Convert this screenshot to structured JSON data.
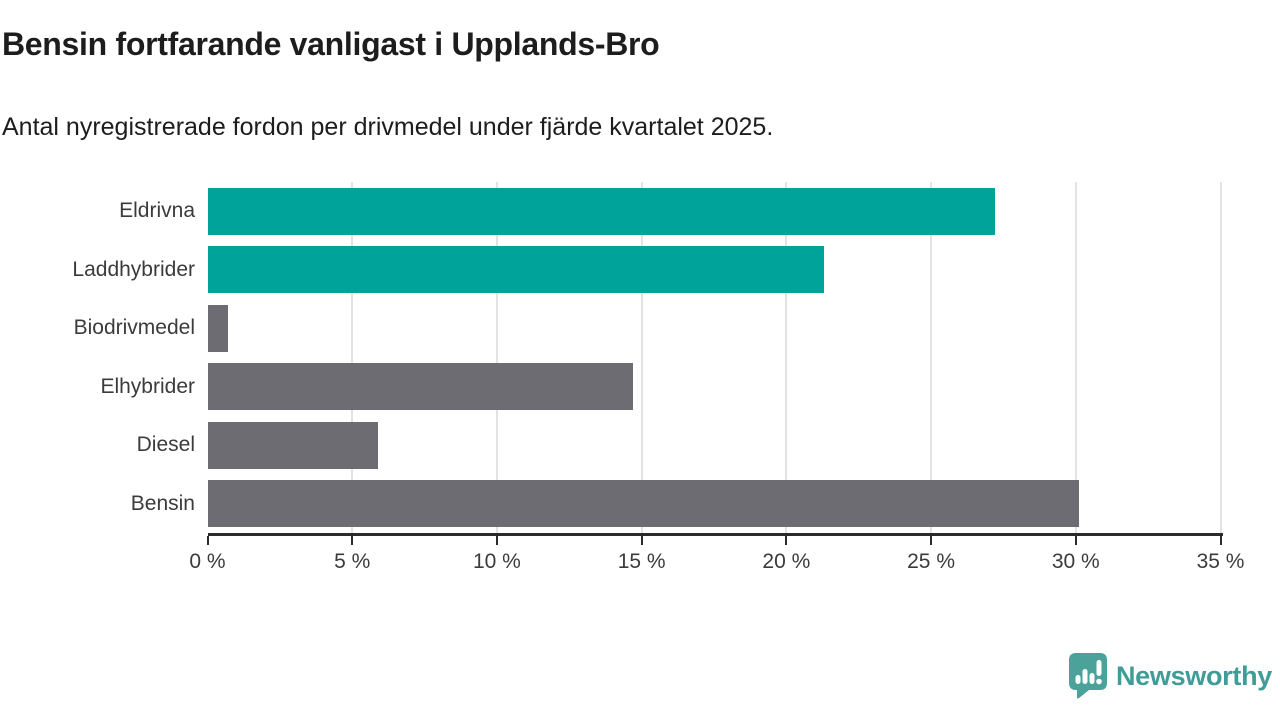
{
  "header": {
    "title": "Bensin fortfarande vanligast i Upplands-Bro",
    "subtitle": "Antal nyregistrerade fordon per drivmedel under fjärde kvartalet 2025."
  },
  "chart_data": {
    "type": "bar",
    "orientation": "horizontal",
    "title": "Bensin fortfarande vanligast i Upplands-Bro",
    "subtitle": "Antal nyregistrerade fordon per drivmedel under fjärde kvartalet 2025.",
    "categories": [
      "Eldrivna",
      "Laddhybrider",
      "Biodrivmedel",
      "Elhybrider",
      "Diesel",
      "Bensin"
    ],
    "values": [
      27.2,
      21.3,
      0.7,
      14.7,
      5.9,
      30.1
    ],
    "unit": "%",
    "bar_colors": [
      "#00a39a",
      "#00a39a",
      "#6d6c72",
      "#6d6c72",
      "#6d6c72",
      "#6d6c72"
    ],
    "highlight_color": "#00a39a",
    "default_color": "#6d6c72",
    "xlim": [
      0,
      35
    ],
    "x_tick_values": [
      0,
      5,
      10,
      15,
      20,
      25,
      30,
      35
    ],
    "x_tick_labels": [
      "0 %",
      "5 %",
      "10 %",
      "15 %",
      "20 %",
      "25 %",
      "30 %",
      "35 %"
    ],
    "grid": "vertical",
    "legend": "none",
    "xlabel": "",
    "ylabel": ""
  },
  "branding": {
    "logo_text": "Newsworthy",
    "logo_color": "#3f9c96",
    "logo_icon": "speech-bubble-with-bar-chart-and-exclamation",
    "icon_fill": "#4aa29b"
  }
}
